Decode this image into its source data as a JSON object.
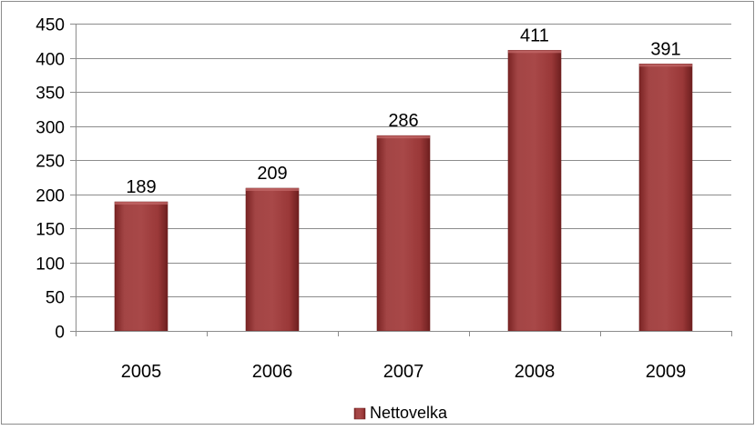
{
  "chart_data": {
    "type": "bar",
    "categories": [
      "2005",
      "2006",
      "2007",
      "2008",
      "2009"
    ],
    "series": [
      {
        "name": "Nettovelka",
        "values": [
          189,
          209,
          286,
          411,
          391
        ]
      }
    ],
    "ylim": [
      0,
      450
    ],
    "y_ticks": [
      "0",
      "50",
      "100",
      "150",
      "200",
      "250",
      "300",
      "350",
      "400",
      "450"
    ],
    "data_labels": [
      "189",
      "209",
      "286",
      "411",
      "391"
    ],
    "grid": true,
    "legend_position": "bottom",
    "bar_color": "#9b3b3b",
    "title": "",
    "xlabel": "",
    "ylabel": ""
  }
}
